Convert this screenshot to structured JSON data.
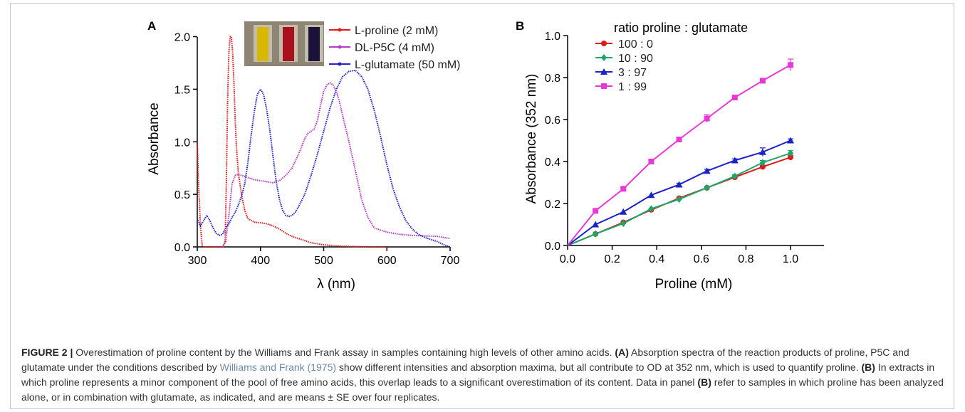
{
  "chart_data": [
    {
      "panel": "A",
      "type": "line",
      "xlabel": "λ (nm)",
      "ylabel": "Absorbance",
      "xlim": [
        300,
        700
      ],
      "ylim": [
        0,
        2.2
      ],
      "xticks": [
        "300",
        "400",
        "500",
        "600",
        "700"
      ],
      "yticks": [
        "0.0",
        "0.5",
        "1.0",
        "1.5",
        "2.0"
      ],
      "legend_position": "top-right",
      "series": [
        {
          "name": "L-proline (2 mM)",
          "color": "#e01a1a",
          "x": [
            300,
            302,
            305,
            308,
            312,
            320,
            330,
            340,
            344,
            346,
            348,
            350,
            352,
            354,
            356,
            358,
            360,
            362,
            365,
            370,
            375,
            380,
            390,
            400,
            410,
            420,
            430,
            440,
            450,
            460,
            470,
            480,
            490,
            500,
            510,
            520,
            540,
            560,
            580,
            600
          ],
          "y": [
            1.0,
            0.6,
            0.2,
            0.0,
            0.0,
            0.0,
            0.0,
            0.0,
            0.05,
            0.6,
            1.4,
            1.85,
            2.0,
            2.0,
            1.85,
            1.55,
            1.2,
            0.95,
            0.7,
            0.5,
            0.35,
            0.27,
            0.235,
            0.23,
            0.22,
            0.2,
            0.17,
            0.13,
            0.1,
            0.08,
            0.06,
            0.04,
            0.03,
            0.02,
            0.015,
            0.01,
            0.005,
            0.002,
            0.001,
            0.0
          ]
        },
        {
          "name": "DL-P5C (4 mM)",
          "color": "#b83ac8",
          "x": [
            340,
            345,
            350,
            355,
            360,
            365,
            370,
            380,
            390,
            400,
            410,
            420,
            430,
            440,
            450,
            460,
            465,
            470,
            475,
            480,
            485,
            490,
            495,
            500,
            505,
            510,
            515,
            520,
            525,
            530,
            540,
            550,
            560,
            570,
            580,
            600,
            620,
            640,
            660,
            680,
            700
          ],
          "y": [
            0.0,
            0.05,
            0.3,
            0.6,
            0.68,
            0.69,
            0.68,
            0.66,
            0.64,
            0.63,
            0.62,
            0.61,
            0.63,
            0.68,
            0.75,
            0.88,
            0.95,
            1.03,
            1.08,
            1.1,
            1.12,
            1.2,
            1.35,
            1.48,
            1.54,
            1.56,
            1.54,
            1.48,
            1.38,
            1.25,
            1.0,
            0.73,
            0.45,
            0.28,
            0.18,
            0.14,
            0.12,
            0.11,
            0.105,
            0.1,
            0.08
          ]
        },
        {
          "name": "L-glutamate (50 mM)",
          "color": "#2222cc",
          "x": [
            300,
            305,
            310,
            315,
            320,
            325,
            330,
            335,
            340,
            345,
            350,
            355,
            360,
            365,
            370,
            375,
            380,
            385,
            390,
            395,
            400,
            405,
            410,
            415,
            420,
            425,
            430,
            435,
            440,
            445,
            450,
            455,
            460,
            470,
            480,
            490,
            500,
            510,
            520,
            530,
            540,
            550,
            560,
            570,
            580,
            590,
            600,
            610,
            620,
            630,
            640,
            650,
            660,
            670,
            680,
            690,
            700
          ],
          "y": [
            0.27,
            0.2,
            0.25,
            0.3,
            0.25,
            0.18,
            0.13,
            0.11,
            0.12,
            0.18,
            0.22,
            0.28,
            0.33,
            0.4,
            0.48,
            0.6,
            0.8,
            1.05,
            1.28,
            1.45,
            1.5,
            1.45,
            1.3,
            1.1,
            0.85,
            0.62,
            0.45,
            0.35,
            0.3,
            0.29,
            0.3,
            0.33,
            0.38,
            0.5,
            0.68,
            0.88,
            1.1,
            1.32,
            1.5,
            1.62,
            1.67,
            1.68,
            1.62,
            1.5,
            1.3,
            1.05,
            0.78,
            0.55,
            0.38,
            0.25,
            0.17,
            0.12,
            0.09,
            0.07,
            0.05,
            0.02,
            0.0
          ]
        }
      ]
    },
    {
      "panel": "B",
      "type": "line",
      "xlabel": "Proline (mM)",
      "ylabel": "Absorbance (352 nm)",
      "xlim": [
        0,
        1.15
      ],
      "ylim": [
        0,
        1.0
      ],
      "xticks": [
        "0.0",
        "0.2",
        "0.4",
        "0.6",
        "0.8",
        "1.0"
      ],
      "yticks": [
        "0.0",
        "0.2",
        "0.4",
        "0.6",
        "0.8",
        "1.0"
      ],
      "legend_title": "ratio proline : glutamate",
      "legend_position": "top-left",
      "x": [
        0,
        0.125,
        0.25,
        0.375,
        0.5,
        0.625,
        0.75,
        0.875,
        1.0
      ],
      "series": [
        {
          "name": "100 : 0",
          "color": "#e01a1a",
          "marker": "circle",
          "values": [
            0,
            0.055,
            0.11,
            0.17,
            0.225,
            0.275,
            0.325,
            0.375,
            0.42
          ],
          "errors": [
            0,
            0.005,
            0.005,
            0.006,
            0.006,
            0.006,
            0.007,
            0.007,
            0.01
          ]
        },
        {
          "name": "10 : 90",
          "color": "#1aa86a",
          "marker": "diamond",
          "values": [
            0,
            0.055,
            0.105,
            0.175,
            0.22,
            0.275,
            0.33,
            0.395,
            0.44
          ],
          "errors": [
            0,
            0.005,
            0.005,
            0.006,
            0.006,
            0.006,
            0.007,
            0.01,
            0.012
          ]
        },
        {
          "name": "3 : 97",
          "color": "#1a22c8",
          "marker": "triangle",
          "values": [
            0,
            0.1,
            0.16,
            0.24,
            0.29,
            0.355,
            0.405,
            0.445,
            0.5
          ],
          "errors": [
            0,
            0.006,
            0.006,
            0.006,
            0.007,
            0.008,
            0.008,
            0.02,
            0.008
          ]
        },
        {
          "name": "1 : 99",
          "color": "#e838d8",
          "marker": "square",
          "values": [
            0,
            0.165,
            0.27,
            0.4,
            0.505,
            0.605,
            0.705,
            0.785,
            0.86
          ],
          "errors": [
            0,
            0.008,
            0.008,
            0.008,
            0.008,
            0.018,
            0.008,
            0.008,
            0.028
          ]
        }
      ],
      "legend_markers": {
        "circle": "●",
        "diamond": "◆",
        "triangle": "▲",
        "square": "■"
      }
    }
  ],
  "panel_labels": {
    "a": "A",
    "b": "B"
  },
  "inset": {
    "vials": [
      {
        "color": "#d9b800"
      },
      {
        "color": "#a8101c"
      },
      {
        "color": "#1a1238"
      }
    ],
    "background": "#8f8574"
  },
  "caption": {
    "label": "FIGURE 2 |",
    "text1": "Overestimation of proline content by the Williams and Frank assay in samples containing high levels of other amino acids.",
    "panel_a": "(A)",
    "text2": "Absorption spectra of the reaction products of proline, P5C and glutamate under the conditions described by",
    "reference": "Williams and Frank (1975)",
    "text3": "show different intensities and absorption maxima, but all contribute to OD at 352 nm, which is used to quantify proline.",
    "panel_b": "(B)",
    "text4": "In extracts in which proline represents a minor component of the pool of free amino acids, this overlap leads to a significant overestimation of its content. Data in panel",
    "panel_b2": "(B)",
    "text5": "refer to samples in which proline has been analyzed alone, or in combination with glutamate, as indicated, and are means ± SE over four replicates."
  }
}
